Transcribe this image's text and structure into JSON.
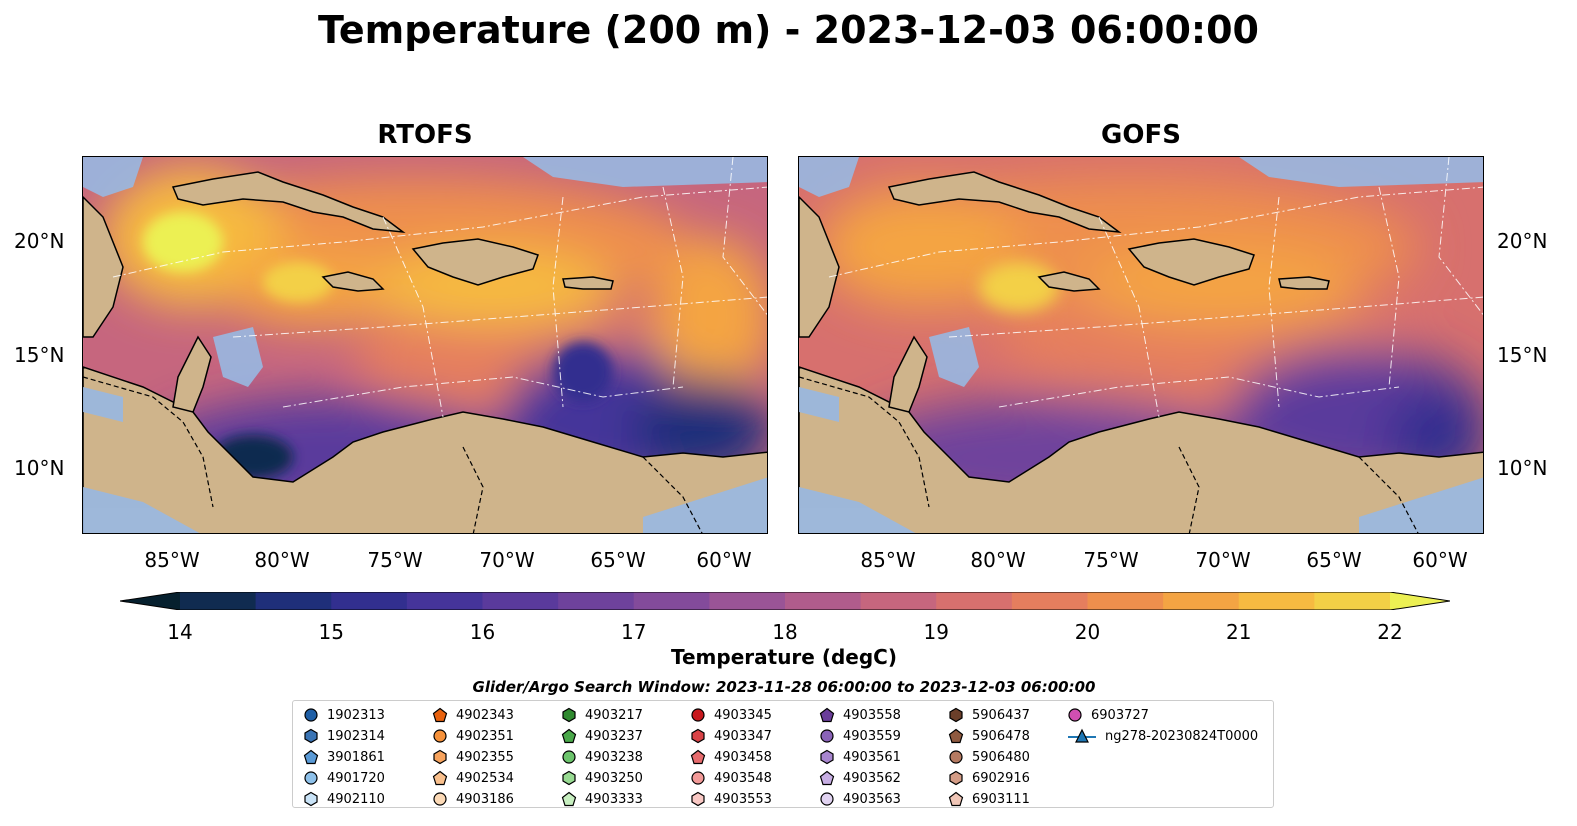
{
  "figure": {
    "title": "Temperature (200 m) - 2023-12-03 06:00:00",
    "panels": [
      {
        "title": "RTOFS"
      },
      {
        "title": "GOFS"
      }
    ],
    "lat_labels": [
      "20°N",
      "15°N",
      "10°N"
    ],
    "lon_labels": [
      "85°W",
      "80°W",
      "75°W",
      "70°W",
      "65°W",
      "60°W"
    ],
    "colorbar": {
      "label": "Temperature (degC)",
      "ticks": [
        "14",
        "15",
        "16",
        "17",
        "18",
        "19",
        "20",
        "21",
        "22"
      ],
      "range": [
        14,
        22
      ],
      "extend": "both",
      "colormap": "thermal",
      "colors": [
        "#06202e",
        "#102b50",
        "#1f2f7a",
        "#322f8f",
        "#45349a",
        "#5a3a9c",
        "#6e429c",
        "#834b9b",
        "#9a5496",
        "#b05c8c",
        "#c6667e",
        "#d7706e",
        "#e57e5e",
        "#ee8f4d",
        "#f4a443",
        "#f6ba41",
        "#f3d046",
        "#ecf053"
      ]
    },
    "search_window": "Glider/Argo Search Window: 2023-11-28 06:00:00 to 2023-12-03 06:00:00",
    "legend": [
      {
        "label": "1902313",
        "color": "#1f5fa6",
        "shape": "circle"
      },
      {
        "label": "1902314",
        "color": "#3a74b4",
        "shape": "hexagon"
      },
      {
        "label": "3901861",
        "color": "#5a9ad6",
        "shape": "pentagon"
      },
      {
        "label": "4901720",
        "color": "#8ec1ea",
        "shape": "circle"
      },
      {
        "label": "4902110",
        "color": "#c9e3f7",
        "shape": "hexagon"
      },
      {
        "label": "4902343",
        "color": "#e8620e",
        "shape": "pentagon"
      },
      {
        "label": "4902351",
        "color": "#f5913a",
        "shape": "circle"
      },
      {
        "label": "4902355",
        "color": "#f7a35d",
        "shape": "hexagon"
      },
      {
        "label": "4902534",
        "color": "#f9c08d",
        "shape": "pentagon"
      },
      {
        "label": "4903186",
        "color": "#fbd9b6",
        "shape": "circle"
      },
      {
        "label": "4903217",
        "color": "#2f8a2f",
        "shape": "hexagon"
      },
      {
        "label": "4903237",
        "color": "#4aa84a",
        "shape": "pentagon"
      },
      {
        "label": "4903238",
        "color": "#6cc46c",
        "shape": "circle"
      },
      {
        "label": "4903250",
        "color": "#98da92",
        "shape": "hexagon"
      },
      {
        "label": "4903333",
        "color": "#c7efc0",
        "shape": "pentagon"
      },
      {
        "label": "4903345",
        "color": "#c8191e",
        "shape": "circle"
      },
      {
        "label": "4903347",
        "color": "#d94347",
        "shape": "hexagon"
      },
      {
        "label": "4903458",
        "color": "#e66b6d",
        "shape": "pentagon"
      },
      {
        "label": "4903548",
        "color": "#f29a98",
        "shape": "circle"
      },
      {
        "label": "4903553",
        "color": "#f9c8c4",
        "shape": "hexagon"
      },
      {
        "label": "4903558",
        "color": "#6a3d9a",
        "shape": "pentagon"
      },
      {
        "label": "4903559",
        "color": "#8a63b8",
        "shape": "circle"
      },
      {
        "label": "4903561",
        "color": "#a886cf",
        "shape": "hexagon"
      },
      {
        "label": "4903562",
        "color": "#c7aee3",
        "shape": "pentagon"
      },
      {
        "label": "4903563",
        "color": "#e1d3f1",
        "shape": "circle"
      },
      {
        "label": "5906437",
        "color": "#6b3f2a",
        "shape": "hexagon"
      },
      {
        "label": "5906478",
        "color": "#8f5a40",
        "shape": "pentagon"
      },
      {
        "label": "5906480",
        "color": "#b57a61",
        "shape": "circle"
      },
      {
        "label": "6902916",
        "color": "#d49c86",
        "shape": "hexagon"
      },
      {
        "label": "6903111",
        "color": "#f0c6b7",
        "shape": "pentagon"
      },
      {
        "label": "6903727",
        "color": "#d14fb1",
        "shape": "circle"
      },
      {
        "label": "ng278-20230824T0000",
        "color": "#1f77b4",
        "shape": "triangle-line"
      }
    ]
  }
}
